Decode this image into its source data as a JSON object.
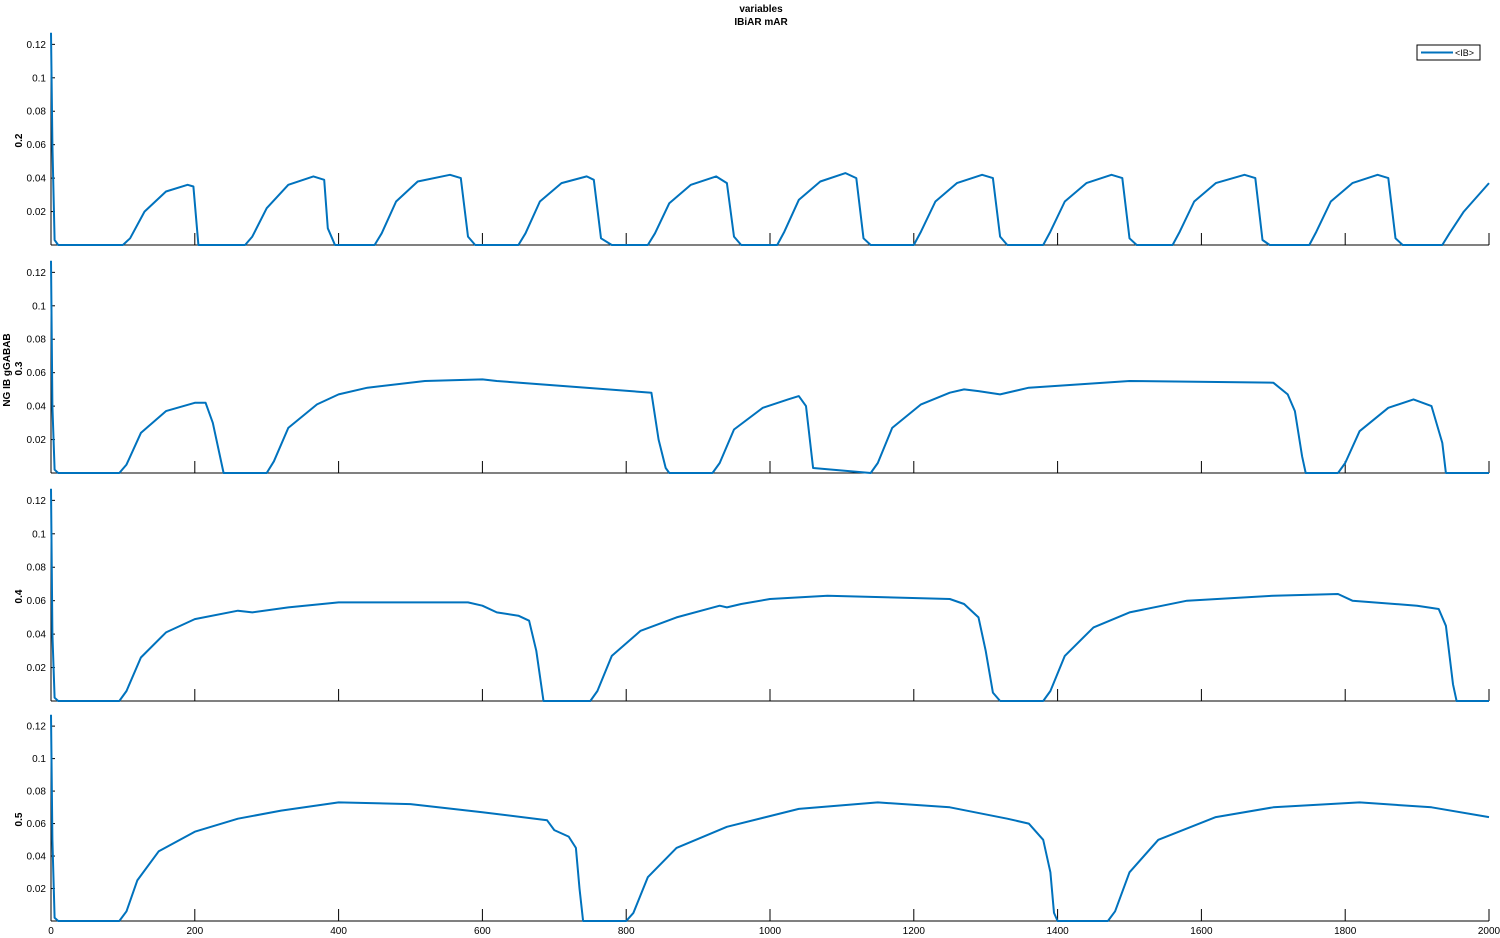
{
  "figure": {
    "title_line1": "variables",
    "title_line2": "IBiAR mAR",
    "ylabel_group": "NG IB gGABAB",
    "legend_label": "<IB>",
    "line_color": "#0072BD"
  },
  "chart_data": [
    {
      "type": "line",
      "ylabel": "0.2",
      "xlim": [
        0,
        2000
      ],
      "ylim": [
        0,
        0.125
      ],
      "yticks": [
        "0.02",
        "0.04",
        "0.06",
        "0.08",
        "0.1",
        "0.12"
      ],
      "xticks": [
        "0",
        "200",
        "400",
        "600",
        "800",
        "1000",
        "1200",
        "1400",
        "1600",
        "1800",
        "2000"
      ],
      "series": [
        {
          "name": "<IB>",
          "x": [
            0,
            2,
            5,
            10,
            100,
            110,
            130,
            160,
            190,
            198,
            205,
            270,
            280,
            300,
            330,
            365,
            380,
            385,
            395,
            450,
            460,
            480,
            510,
            555,
            570,
            580,
            590,
            650,
            660,
            680,
            710,
            745,
            755,
            765,
            780,
            830,
            840,
            860,
            890,
            925,
            940,
            950,
            960,
            1010,
            1020,
            1040,
            1070,
            1105,
            1120,
            1130,
            1140,
            1200,
            1210,
            1230,
            1260,
            1295,
            1310,
            1320,
            1330,
            1380,
            1390,
            1410,
            1440,
            1475,
            1490,
            1500,
            1510,
            1560,
            1570,
            1590,
            1620,
            1660,
            1675,
            1685,
            1695,
            1750,
            1760,
            1780,
            1810,
            1845,
            1860,
            1870,
            1880,
            1935,
            1945,
            1965,
            2000
          ],
          "y": [
            0.127,
            0.06,
            0.003,
            0,
            0,
            0.004,
            0.02,
            0.032,
            0.036,
            0.035,
            0,
            0,
            0.005,
            0.022,
            0.036,
            0.041,
            0.039,
            0.01,
            0,
            0,
            0.007,
            0.026,
            0.038,
            0.042,
            0.04,
            0.005,
            0,
            0,
            0.007,
            0.026,
            0.037,
            0.041,
            0.039,
            0.004,
            0,
            0,
            0.007,
            0.025,
            0.036,
            0.041,
            0.037,
            0.005,
            0,
            0,
            0.008,
            0.027,
            0.038,
            0.043,
            0.04,
            0.004,
            0,
            0,
            0.008,
            0.026,
            0.037,
            0.042,
            0.04,
            0.005,
            0,
            0,
            0.008,
            0.026,
            0.037,
            0.042,
            0.04,
            0.004,
            0,
            0,
            0.008,
            0.026,
            0.037,
            0.042,
            0.04,
            0.003,
            0,
            0,
            0.008,
            0.026,
            0.037,
            0.042,
            0.04,
            0.004,
            0,
            0,
            0.007,
            0.02,
            0.037
          ]
        }
      ]
    },
    {
      "type": "line",
      "ylabel": "0.3",
      "xlim": [
        0,
        2000
      ],
      "ylim": [
        0,
        0.125
      ],
      "yticks": [
        "0.02",
        "0.04",
        "0.06",
        "0.08",
        "0.1",
        "0.12"
      ],
      "xticks": [
        "0",
        "200",
        "400",
        "600",
        "800",
        "1000",
        "1200",
        "1400",
        "1600",
        "1800",
        "2000"
      ],
      "series": [
        {
          "name": "<IB>",
          "x": [
            0,
            2,
            5,
            10,
            95,
            105,
            125,
            160,
            200,
            215,
            225,
            240,
            300,
            310,
            330,
            370,
            400,
            440,
            520,
            600,
            620,
            835,
            845,
            855,
            860,
            920,
            930,
            950,
            990,
            1025,
            1040,
            1050,
            1060,
            1140,
            1150,
            1170,
            1210,
            1250,
            1270,
            1290,
            1320,
            1360,
            1500,
            1700,
            1720,
            1730,
            1740,
            1745,
            1790,
            1800,
            1820,
            1860,
            1895,
            1920,
            1935,
            1940,
            2000
          ],
          "y": [
            0.127,
            0.04,
            0.002,
            0,
            0,
            0.005,
            0.024,
            0.037,
            0.042,
            0.042,
            0.03,
            0,
            0,
            0.007,
            0.027,
            0.041,
            0.047,
            0.051,
            0.055,
            0.056,
            0.055,
            0.048,
            0.02,
            0.003,
            0,
            0,
            0.006,
            0.026,
            0.039,
            0.044,
            0.046,
            0.04,
            0.003,
            0,
            0.006,
            0.027,
            0.041,
            0.048,
            0.05,
            0.049,
            0.047,
            0.051,
            0.055,
            0.054,
            0.047,
            0.037,
            0.01,
            0,
            0,
            0.006,
            0.025,
            0.039,
            0.044,
            0.04,
            0.018,
            0,
            0
          ]
        }
      ]
    },
    {
      "type": "line",
      "ylabel": "0.4",
      "xlim": [
        0,
        2000
      ],
      "ylim": [
        0,
        0.125
      ],
      "yticks": [
        "0.02",
        "0.04",
        "0.06",
        "0.08",
        "0.1",
        "0.12"
      ],
      "xticks": [
        "0",
        "200",
        "400",
        "600",
        "800",
        "1000",
        "1200",
        "1400",
        "1600",
        "1800",
        "2000"
      ],
      "series": [
        {
          "name": "<IB>",
          "x": [
            0,
            2,
            5,
            10,
            95,
            105,
            125,
            160,
            200,
            260,
            280,
            330,
            400,
            580,
            600,
            620,
            650,
            665,
            675,
            685,
            750,
            760,
            780,
            820,
            870,
            930,
            940,
            960,
            1000,
            1080,
            1250,
            1270,
            1290,
            1300,
            1310,
            1320,
            1380,
            1390,
            1410,
            1450,
            1500,
            1580,
            1700,
            1790,
            1810,
            1900,
            1930,
            1940,
            1950,
            1955,
            2000
          ],
          "y": [
            0.127,
            0.04,
            0.002,
            0,
            0,
            0.006,
            0.026,
            0.041,
            0.049,
            0.054,
            0.053,
            0.056,
            0.059,
            0.059,
            0.057,
            0.053,
            0.051,
            0.048,
            0.03,
            0,
            0,
            0.006,
            0.027,
            0.042,
            0.05,
            0.057,
            0.056,
            0.058,
            0.061,
            0.063,
            0.061,
            0.058,
            0.05,
            0.03,
            0.005,
            0,
            0,
            0.006,
            0.027,
            0.044,
            0.053,
            0.06,
            0.063,
            0.064,
            0.06,
            0.057,
            0.055,
            0.045,
            0.01,
            0,
            0
          ]
        }
      ]
    },
    {
      "type": "line",
      "ylabel": "0.5",
      "xlim": [
        0,
        2000
      ],
      "ylim": [
        0,
        0.125
      ],
      "yticks": [
        "0.02",
        "0.04",
        "0.06",
        "0.08",
        "0.1",
        "0.12"
      ],
      "xticks": [
        "0",
        "200",
        "400",
        "600",
        "800",
        "1000",
        "1200",
        "1400",
        "1600",
        "1800",
        "2000"
      ],
      "series": [
        {
          "name": "<IB>",
          "x": [
            0,
            2,
            5,
            10,
            95,
            105,
            120,
            150,
            200,
            260,
            320,
            400,
            500,
            600,
            690,
            700,
            720,
            730,
            735,
            740,
            800,
            810,
            830,
            870,
            940,
            1040,
            1150,
            1250,
            1330,
            1360,
            1380,
            1390,
            1395,
            1400,
            1470,
            1480,
            1500,
            1540,
            1620,
            1700,
            1820,
            1920,
            2000
          ],
          "y": [
            0.127,
            0.05,
            0.002,
            0,
            0,
            0.006,
            0.025,
            0.043,
            0.055,
            0.063,
            0.068,
            0.073,
            0.072,
            0.067,
            0.062,
            0.056,
            0.052,
            0.045,
            0.02,
            0,
            0,
            0.005,
            0.027,
            0.045,
            0.058,
            0.069,
            0.073,
            0.07,
            0.063,
            0.06,
            0.05,
            0.03,
            0.005,
            0,
            0,
            0.006,
            0.03,
            0.05,
            0.064,
            0.07,
            0.073,
            0.07,
            0.064
          ]
        }
      ]
    }
  ]
}
